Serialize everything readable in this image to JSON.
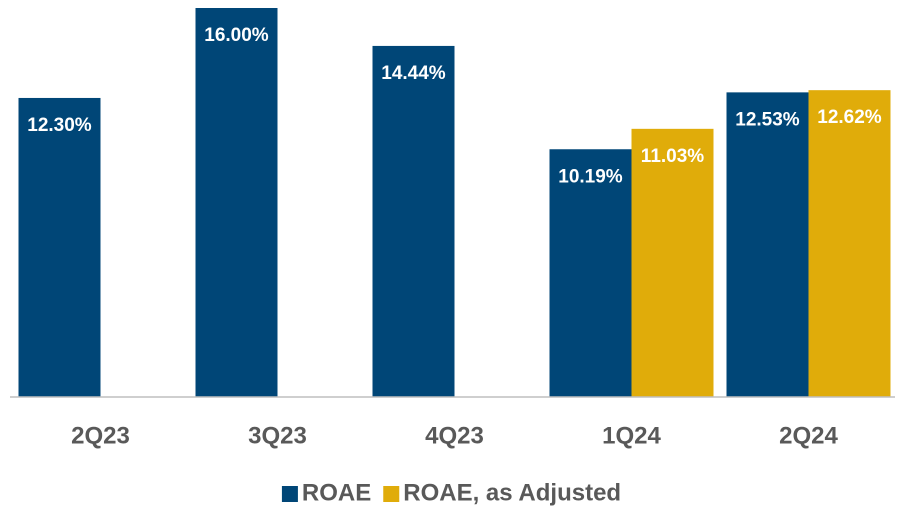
{
  "chart_data": {
    "type": "bar",
    "categories": [
      "2Q23",
      "3Q23",
      "4Q23",
      "1Q24",
      "2Q24"
    ],
    "series": [
      {
        "name": "ROAE",
        "color": "#004677",
        "values": [
          12.3,
          16.0,
          14.44,
          10.19,
          12.53
        ],
        "value_labels": [
          "12.30%",
          "16.00%",
          "14.44%",
          "10.19%",
          "12.53%"
        ]
      },
      {
        "name": "ROAE, as Adjusted",
        "color": "#e0ac0a",
        "values": [
          null,
          null,
          null,
          11.03,
          12.62
        ],
        "value_labels": [
          null,
          null,
          null,
          "11.03%",
          "12.62%"
        ]
      }
    ],
    "ylim": [
      0,
      16
    ],
    "legend": "bottom"
  }
}
